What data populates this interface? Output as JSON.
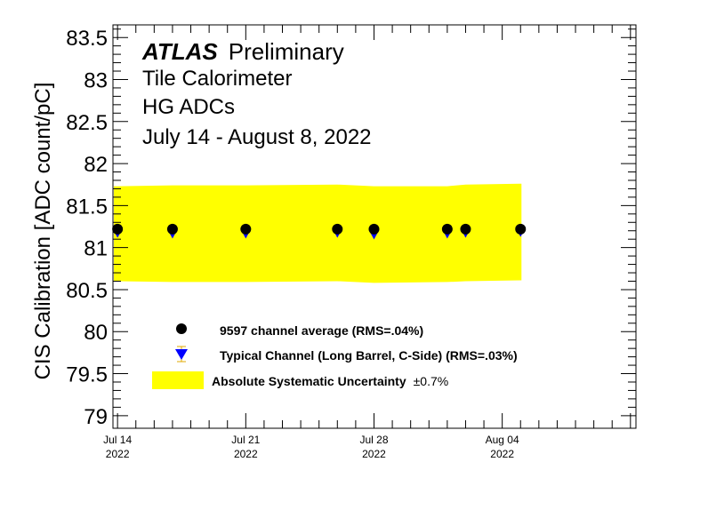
{
  "chart_data": {
    "type": "scatter",
    "annotation_lines": [
      {
        "bold_italic": "ATLAS",
        "rest": "Preliminary"
      },
      {
        "text": "Tile Calorimeter"
      },
      {
        "text": "HG ADCs"
      },
      {
        "text": "July 14 - August 8, 2022"
      }
    ],
    "ylabel": "CIS Calibration [ADC count/pC]",
    "ylim": [
      78.85,
      83.65
    ],
    "xlim_days": [
      -0.25,
      28.3
    ],
    "x_ticks": [
      {
        "day": 0,
        "label1": "Jul 14",
        "label2": "2022"
      },
      {
        "day": 7,
        "label1": "Jul 21",
        "label2": "2022"
      },
      {
        "day": 14,
        "label1": "Jul 28",
        "label2": "2022"
      },
      {
        "day": 21,
        "label1": "Aug 04",
        "label2": "2022"
      }
    ],
    "y_ticks": [
      79,
      79.5,
      80,
      80.5,
      81,
      81.5,
      82,
      82.5,
      83,
      83.5
    ],
    "series": [
      {
        "name": "9597 channel average (RMS=.04%)",
        "marker": "circle",
        "color": "#000000",
        "x": [
          "Jul 14",
          "Jul 17",
          "Jul 21",
          "Jul 26",
          "Jul 28",
          "Aug 1",
          "Aug 2",
          "Aug 5"
        ],
        "y": [
          81.22,
          81.22,
          81.22,
          81.22,
          81.22,
          81.22,
          81.22,
          81.22
        ]
      },
      {
        "name": "Typical Channel (Long Barrel, C-Side) (RMS=.03%)",
        "marker": "triangle-down",
        "color": "#0000ff",
        "x": [
          "Jul 14",
          "Jul 17",
          "Jul 21",
          "Jul 26",
          "Jul 28",
          "Aug 1",
          "Aug 2",
          "Aug 5"
        ],
        "y": [
          81.17,
          81.16,
          81.16,
          81.17,
          81.15,
          81.16,
          81.17,
          81.18
        ]
      }
    ],
    "band": {
      "name": "Absolute Systematic Uncertainty",
      "label_suffix": "±0.7%",
      "color": "#ffff00",
      "x": [
        "Jul 14",
        "Jul 17",
        "Jul 21",
        "Jul 26",
        "Jul 28",
        "Aug 1",
        "Aug 2",
        "Aug 5"
      ],
      "lower": [
        80.6,
        80.59,
        80.59,
        80.6,
        80.58,
        80.59,
        80.6,
        80.61
      ],
      "upper": [
        81.73,
        81.74,
        81.74,
        81.75,
        81.73,
        81.73,
        81.75,
        81.76
      ]
    },
    "legend_placement": "bottom-left",
    "grid": false
  }
}
